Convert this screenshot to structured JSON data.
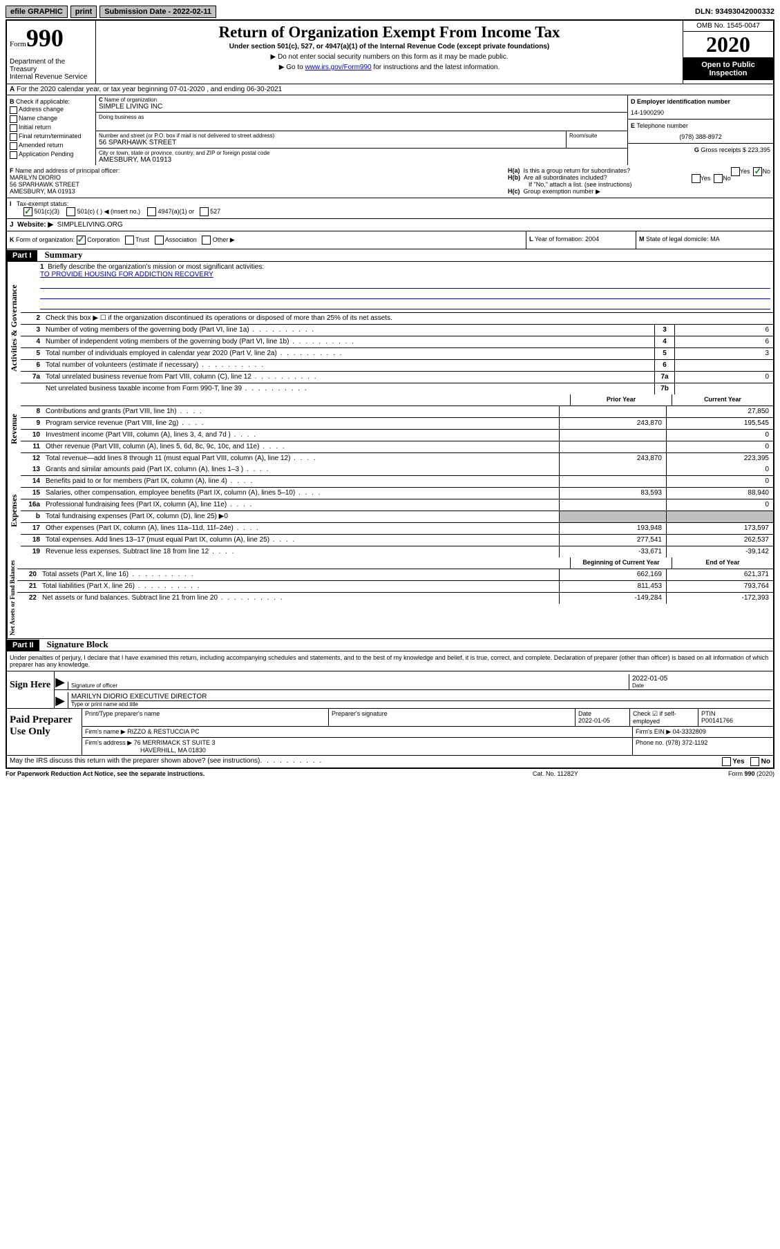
{
  "topbar": {
    "efile": "efile GRAPHIC",
    "print": "print",
    "subdate_label": "Submission Date - ",
    "subdate": "2022-02-11",
    "dln": "DLN: 93493042000332"
  },
  "header": {
    "form_word": "Form",
    "form_num": "990",
    "dept": "Department of the Treasury",
    "irs": "Internal Revenue Service",
    "title": "Return of Organization Exempt From Income Tax",
    "sub": "Under section 501(c), 527, or 4947(a)(1) of the Internal Revenue Code (except private foundations)",
    "note1": "▶ Do not enter social security numbers on this form as it may be made public.",
    "note2_pre": "▶ Go to ",
    "note2_link": "www.irs.gov/Form990",
    "note2_post": " for instructions and the latest information.",
    "omb": "OMB No. 1545-0047",
    "year": "2020",
    "open": "Open to Public",
    "inspection": "Inspection"
  },
  "A": {
    "text": "For the 2020 calendar year, or tax year beginning 07-01-2020   , and ending 06-30-2021"
  },
  "B": {
    "label": "Check if applicable:",
    "opts": [
      "Address change",
      "Name change",
      "Initial return",
      "Final return/terminated",
      "Amended return",
      "Application Pending"
    ]
  },
  "C": {
    "name_label": "Name of organization",
    "name": "SIMPLE LIVING INC",
    "dba_label": "Doing business as",
    "addr_label": "Number and street (or P.O. box if mail is not delivered to street address)",
    "room_label": "Room/suite",
    "addr": "56 SPARHAWK STREET",
    "city_label": "City or town, state or province, country, and ZIP or foreign postal code",
    "city": "AMESBURY, MA  01913"
  },
  "D": {
    "label": "Employer identification number",
    "val": "14-1900290"
  },
  "E": {
    "label": "Telephone number",
    "val": "(978) 388-8972"
  },
  "G": {
    "label": "Gross receipts $",
    "val": "223,395"
  },
  "F": {
    "label": "Name and address of principal officer:",
    "name": "MARILYN DIORIO",
    "addr1": "56 SPARHAWK STREET",
    "addr2": "AMESBURY, MA  01913"
  },
  "H": {
    "a": "Is this a group return for subordinates?",
    "b": "Are all subordinates included?",
    "b_note": "If \"No,\" attach a list. (see instructions)",
    "c": "Group exemption number ▶",
    "yes": "Yes",
    "no": "No"
  },
  "I": {
    "label": "Tax-exempt status:",
    "o1": "501(c)(3)",
    "o2": "501(c) (   ) ◀ (insert no.)",
    "o3": "4947(a)(1) or",
    "o4": "527"
  },
  "J": {
    "label": "Website: ▶",
    "val": "SIMPLELIVING.ORG"
  },
  "K": {
    "label": "Form of organization:",
    "corp": "Corporation",
    "trust": "Trust",
    "assoc": "Association",
    "other": "Other ▶"
  },
  "L": {
    "label": "Year of formation:",
    "val": "2004"
  },
  "M": {
    "label": "State of legal domicile:",
    "val": "MA"
  },
  "part1": {
    "header": "Part I",
    "title": "Summary",
    "l1": "Briefly describe the organization's mission or most significant activities:",
    "mission": "TO PROVIDE HOUSING FOR ADDICTION RECOVERY",
    "l2": "Check this box ▶ ☐  if the organization discontinued its operations or disposed of more than 25% of its net assets.",
    "lines": [
      {
        "n": "3",
        "t": "Number of voting members of the governing body (Part VI, line 1a)",
        "box": "3",
        "v": "6"
      },
      {
        "n": "4",
        "t": "Number of independent voting members of the governing body (Part VI, line 1b)",
        "box": "4",
        "v": "6"
      },
      {
        "n": "5",
        "t": "Total number of individuals employed in calendar year 2020 (Part V, line 2a)",
        "box": "5",
        "v": "3"
      },
      {
        "n": "6",
        "t": "Total number of volunteers (estimate if necessary)",
        "box": "6",
        "v": ""
      },
      {
        "n": "7a",
        "t": "Total unrelated business revenue from Part VIII, column (C), line 12",
        "box": "7a",
        "v": "0"
      },
      {
        "n": "",
        "t": "Net unrelated business taxable income from Form 990-T, line 39",
        "box": "7b",
        "v": ""
      }
    ],
    "col_prior": "Prior Year",
    "col_current": "Current Year",
    "rev": [
      {
        "n": "8",
        "t": "Contributions and grants (Part VIII, line 1h)",
        "p": "",
        "c": "27,850"
      },
      {
        "n": "9",
        "t": "Program service revenue (Part VIII, line 2g)",
        "p": "243,870",
        "c": "195,545"
      },
      {
        "n": "10",
        "t": "Investment income (Part VIII, column (A), lines 3, 4, and 7d )",
        "p": "",
        "c": "0"
      },
      {
        "n": "11",
        "t": "Other revenue (Part VIII, column (A), lines 5, 6d, 8c, 9c, 10c, and 11e)",
        "p": "",
        "c": "0"
      },
      {
        "n": "12",
        "t": "Total revenue—add lines 8 through 11 (must equal Part VIII, column (A), line 12)",
        "p": "243,870",
        "c": "223,395"
      }
    ],
    "exp": [
      {
        "n": "13",
        "t": "Grants and similar amounts paid (Part IX, column (A), lines 1–3 )",
        "p": "",
        "c": "0"
      },
      {
        "n": "14",
        "t": "Benefits paid to or for members (Part IX, column (A), line 4)",
        "p": "",
        "c": "0"
      },
      {
        "n": "15",
        "t": "Salaries, other compensation, employee benefits (Part IX, column (A), lines 5–10)",
        "p": "83,593",
        "c": "88,940"
      },
      {
        "n": "16a",
        "t": "Professional fundraising fees (Part IX, column (A), line 11e)",
        "p": "",
        "c": "0"
      },
      {
        "n": "b",
        "t": "Total fundraising expenses (Part IX, column (D), line 25) ▶0",
        "p": "GRAY",
        "c": "GRAY"
      },
      {
        "n": "17",
        "t": "Other expenses (Part IX, column (A), lines 11a–11d, 11f–24e)",
        "p": "193,948",
        "c": "173,597"
      },
      {
        "n": "18",
        "t": "Total expenses. Add lines 13–17 (must equal Part IX, column (A), line 25)",
        "p": "277,541",
        "c": "262,537"
      },
      {
        "n": "19",
        "t": "Revenue less expenses. Subtract line 18 from line 12",
        "p": "-33,671",
        "c": "-39,142"
      }
    ],
    "col_begin": "Beginning of Current Year",
    "col_end": "End of Year",
    "net": [
      {
        "n": "20",
        "t": "Total assets (Part X, line 16)",
        "p": "662,169",
        "c": "621,371"
      },
      {
        "n": "21",
        "t": "Total liabilities (Part X, line 26)",
        "p": "811,453",
        "c": "793,764"
      },
      {
        "n": "22",
        "t": "Net assets or fund balances. Subtract line 21 from line 20",
        "p": "-149,284",
        "c": "-172,393"
      }
    ],
    "vlabels": {
      "gov": "Activities & Governance",
      "rev": "Revenue",
      "exp": "Expenses",
      "net": "Net Assets or Fund Balances"
    }
  },
  "part2": {
    "header": "Part II",
    "title": "Signature Block",
    "penalty": "Under penalties of perjury, I declare that I have examined this return, including accompanying schedules and statements, and to the best of my knowledge and belief, it is true, correct, and complete. Declaration of preparer (other than officer) is based on all information of which preparer has any knowledge."
  },
  "sign": {
    "here": "Sign Here",
    "sig_label": "Signature of officer",
    "date_label": "Date",
    "date": "2022-01-05",
    "name": "MARILYN DIORIO  EXECUTIVE DIRECTOR",
    "name_label": "Type or print name and title"
  },
  "prep": {
    "label": "Paid Preparer Use Only",
    "h_name": "Print/Type preparer's name",
    "h_sig": "Preparer's signature",
    "h_date": "Date",
    "date": "2022-01-05",
    "h_check": "Check ☑ if self-employed",
    "h_ptin": "PTIN",
    "ptin": "P00141766",
    "firm_label": "Firm's name    ▶",
    "firm": "RIZZO & RESTUCCIA PC",
    "ein_label": "Firm's EIN ▶",
    "ein": "04-3332809",
    "addr_label": "Firm's address ▶",
    "addr1": "76 MERRIMACK ST SUITE 3",
    "addr2": "HAVERHILL, MA  01830",
    "phone_label": "Phone no.",
    "phone": "(978) 372-1192"
  },
  "discuss": "May the IRS discuss this return with the preparer shown above? (see instructions)",
  "footer": {
    "left": "For Paperwork Reduction Act Notice, see the separate instructions.",
    "mid": "Cat. No. 11282Y",
    "right": "Form 990 (2020)"
  },
  "colors": {
    "link": "#0000cc",
    "check": "#2a7a2a",
    "gray": "#c0c0c0"
  }
}
